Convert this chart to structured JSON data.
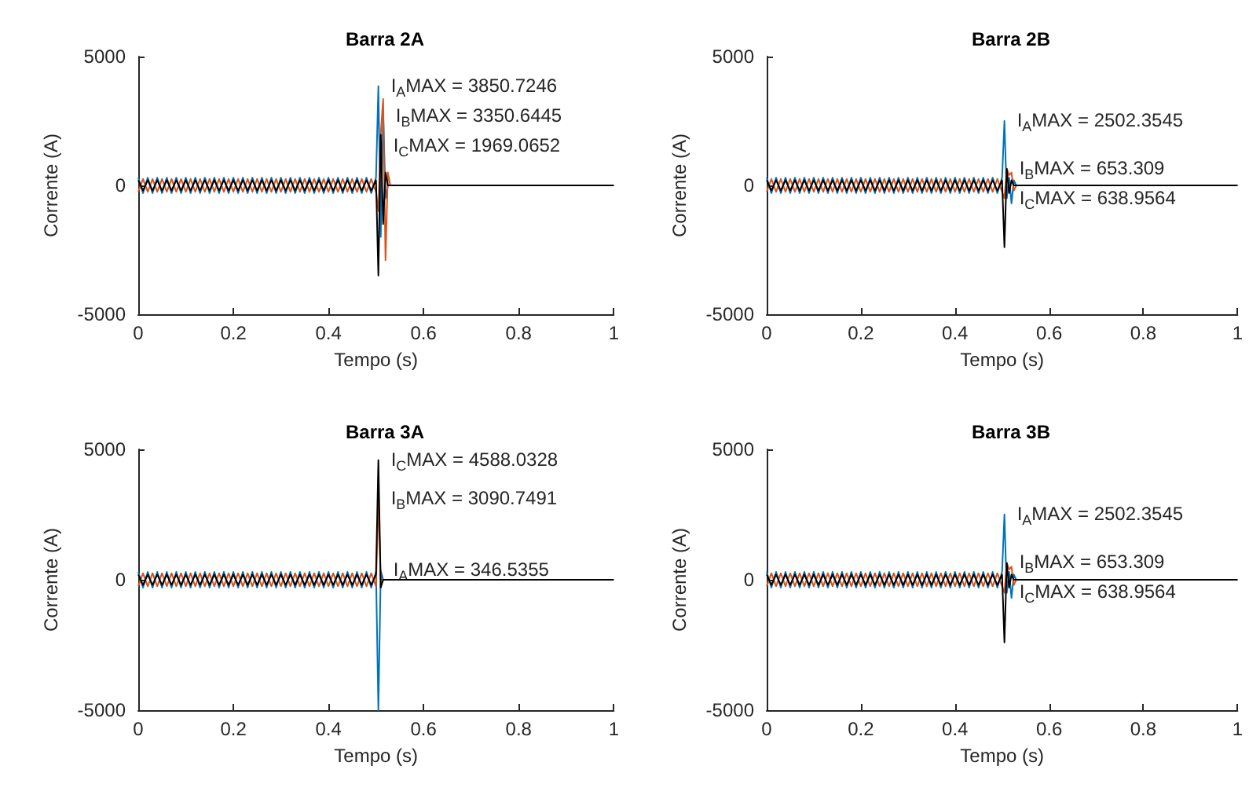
{
  "chart_data": [
    {
      "type": "line",
      "title": "Barra 2A",
      "xlabel": "Tempo (s)",
      "ylabel": "Corrente (A)",
      "xlim": [
        0,
        1
      ],
      "xticks": [
        0,
        0.2,
        0.4,
        0.6,
        0.8,
        1
      ],
      "ylim": [
        -5000,
        5000
      ],
      "yticks": [
        -5000,
        0,
        5000
      ],
      "grid": false,
      "marker": "none",
      "x": [
        0,
        0.01,
        0.02,
        0.03,
        0.04,
        0.05,
        0.06,
        0.07,
        0.08,
        0.09,
        0.1,
        0.11,
        0.12,
        0.13,
        0.14,
        0.15,
        0.16,
        0.17,
        0.18,
        0.19,
        0.2,
        0.21,
        0.22,
        0.23,
        0.24,
        0.25,
        0.26,
        0.27,
        0.28,
        0.29,
        0.3,
        0.31,
        0.32,
        0.33,
        0.34,
        0.35,
        0.36,
        0.37,
        0.38,
        0.39,
        0.4,
        0.41,
        0.42,
        0.43,
        0.44,
        0.45,
        0.46,
        0.47,
        0.48,
        0.49,
        0.5,
        0.505,
        0.51,
        0.515,
        0.52,
        0.525,
        0.53,
        1
      ],
      "series": [
        {
          "color": "#0072bd",
          "values": [
            300,
            -300,
            300,
            -300,
            300,
            -300,
            300,
            -300,
            300,
            -300,
            300,
            -300,
            300,
            -300,
            300,
            -300,
            300,
            -300,
            300,
            -300,
            300,
            -300,
            300,
            -300,
            300,
            -300,
            300,
            -300,
            300,
            -300,
            300,
            -300,
            300,
            -300,
            300,
            -300,
            300,
            -300,
            300,
            -300,
            300,
            -300,
            300,
            -300,
            300,
            -300,
            300,
            -300,
            300,
            -300,
            300,
            3850.7246,
            -2000,
            2900,
            -500,
            0,
            0,
            0
          ]
        },
        {
          "color": "#d95319",
          "values": [
            -250,
            250,
            -250,
            250,
            -250,
            250,
            -250,
            250,
            -250,
            250,
            -250,
            250,
            -250,
            250,
            -250,
            250,
            -250,
            250,
            -250,
            250,
            -250,
            250,
            -250,
            250,
            -250,
            250,
            -250,
            250,
            -250,
            250,
            -250,
            250,
            -250,
            250,
            -250,
            250,
            -250,
            250,
            -250,
            250,
            -250,
            250,
            -250,
            250,
            -250,
            250,
            -250,
            250,
            -250,
            250,
            -250,
            -1000,
            2000,
            3350.6445,
            -2900,
            500,
            0,
            0
          ]
        },
        {
          "color": "#000000",
          "values": [
            200,
            -200,
            200,
            -200,
            200,
            -200,
            200,
            -200,
            200,
            -200,
            200,
            -200,
            200,
            -200,
            200,
            -200,
            200,
            -200,
            200,
            -200,
            200,
            -200,
            200,
            -200,
            200,
            -200,
            200,
            -200,
            200,
            -200,
            200,
            -200,
            200,
            -200,
            200,
            -200,
            200,
            -200,
            200,
            -200,
            200,
            -200,
            200,
            -200,
            200,
            -200,
            200,
            -200,
            200,
            -200,
            200,
            -3500,
            1969.0652,
            -1500,
            500,
            0,
            0,
            0
          ]
        }
      ],
      "annotations": [
        {
          "text": "I$_{A}$MAX = 3850.7246",
          "x": 0.505,
          "y": 3850.7246
        },
        {
          "text": "I$_{B}$MAX = 3350.6445",
          "x": 0.515,
          "y": 3350.6445
        },
        {
          "text": "I$_{C}$MAX = 1969.0652",
          "x": 0.51,
          "y": 1969.0652
        }
      ]
    },
    {
      "type": "line",
      "title": "Barra 2B",
      "xlabel": "Tempo (s)",
      "ylabel": "Corrente (A)",
      "xlim": [
        0,
        1
      ],
      "xticks": [
        0,
        0.2,
        0.4,
        0.6,
        0.8,
        1
      ],
      "ylim": [
        -5000,
        5000
      ],
      "yticks": [
        -5000,
        0,
        5000
      ],
      "grid": false,
      "marker": "none",
      "x": [
        0,
        0.01,
        0.02,
        0.03,
        0.04,
        0.05,
        0.06,
        0.07,
        0.08,
        0.09,
        0.1,
        0.11,
        0.12,
        0.13,
        0.14,
        0.15,
        0.16,
        0.17,
        0.18,
        0.19,
        0.2,
        0.21,
        0.22,
        0.23,
        0.24,
        0.25,
        0.26,
        0.27,
        0.28,
        0.29,
        0.3,
        0.31,
        0.32,
        0.33,
        0.34,
        0.35,
        0.36,
        0.37,
        0.38,
        0.39,
        0.4,
        0.41,
        0.42,
        0.43,
        0.44,
        0.45,
        0.46,
        0.47,
        0.48,
        0.49,
        0.5,
        0.505,
        0.51,
        0.515,
        0.52,
        0.525,
        0.53,
        1
      ],
      "series": [
        {
          "color": "#0072bd",
          "values": [
            300,
            -300,
            300,
            -300,
            300,
            -300,
            300,
            -300,
            300,
            -300,
            300,
            -300,
            300,
            -300,
            300,
            -300,
            300,
            -300,
            300,
            -300,
            300,
            -300,
            300,
            -300,
            300,
            -300,
            300,
            -300,
            300,
            -300,
            300,
            -300,
            300,
            -300,
            300,
            -300,
            300,
            -300,
            300,
            -300,
            300,
            -300,
            300,
            -300,
            300,
            -300,
            300,
            -300,
            300,
            -300,
            300,
            2502.3545,
            -500,
            300,
            -700,
            200,
            0,
            0
          ]
        },
        {
          "color": "#d95319",
          "values": [
            -250,
            250,
            -250,
            250,
            -250,
            250,
            -250,
            250,
            -250,
            250,
            -250,
            250,
            -250,
            250,
            -250,
            250,
            -250,
            250,
            -250,
            250,
            -250,
            250,
            -250,
            250,
            -250,
            250,
            -250,
            250,
            -250,
            250,
            -250,
            250,
            -250,
            250,
            -250,
            250,
            -250,
            250,
            -250,
            250,
            -250,
            250,
            -250,
            250,
            -250,
            250,
            -250,
            250,
            -250,
            250,
            -250,
            -500,
            653.309,
            400,
            500,
            -200,
            0,
            0
          ]
        },
        {
          "color": "#000000",
          "values": [
            200,
            -200,
            200,
            -200,
            200,
            -200,
            200,
            -200,
            200,
            -200,
            200,
            -200,
            200,
            -200,
            200,
            -200,
            200,
            -200,
            200,
            -200,
            200,
            -200,
            200,
            -200,
            200,
            -200,
            200,
            -200,
            200,
            -200,
            200,
            -200,
            200,
            -200,
            200,
            -200,
            200,
            -200,
            200,
            -200,
            200,
            -200,
            200,
            -200,
            200,
            -200,
            200,
            -200,
            200,
            -200,
            200,
            -2400,
            638.9564,
            -300,
            200,
            0,
            0,
            0
          ]
        }
      ],
      "annotations": [
        {
          "text": "I$_{A}$MAX = 2502.3545",
          "x": 0.505,
          "y": 2502.3545
        },
        {
          "text": "I$_{B}$MAX = 653.309",
          "x": 0.51,
          "y": 653.309
        },
        {
          "text": "I$_{C}$MAX = 638.9564",
          "x": 0.51,
          "y": 638.9564
        }
      ]
    },
    {
      "type": "line",
      "title": "Barra 3A",
      "xlabel": "Tempo (s)",
      "ylabel": "Corrente (A)",
      "xlim": [
        0,
        1
      ],
      "xticks": [
        0,
        0.2,
        0.4,
        0.6,
        0.8,
        1
      ],
      "ylim": [
        -5000,
        5000
      ],
      "yticks": [
        -5000,
        0,
        5000
      ],
      "grid": false,
      "marker": "none",
      "x": [
        0,
        0.01,
        0.02,
        0.03,
        0.04,
        0.05,
        0.06,
        0.07,
        0.08,
        0.09,
        0.1,
        0.11,
        0.12,
        0.13,
        0.14,
        0.15,
        0.16,
        0.17,
        0.18,
        0.19,
        0.2,
        0.21,
        0.22,
        0.23,
        0.24,
        0.25,
        0.26,
        0.27,
        0.28,
        0.29,
        0.3,
        0.31,
        0.32,
        0.33,
        0.34,
        0.35,
        0.36,
        0.37,
        0.38,
        0.39,
        0.4,
        0.41,
        0.42,
        0.43,
        0.44,
        0.45,
        0.46,
        0.47,
        0.48,
        0.49,
        0.5,
        0.505,
        0.51,
        0.515,
        0.52,
        0.525,
        0.53,
        1
      ],
      "series": [
        {
          "color": "#0072bd",
          "values": [
            300,
            -300,
            300,
            -300,
            300,
            -300,
            300,
            -300,
            300,
            -300,
            300,
            -300,
            300,
            -300,
            300,
            -300,
            300,
            -300,
            300,
            -300,
            300,
            -300,
            300,
            -300,
            300,
            -300,
            300,
            -300,
            300,
            -300,
            300,
            -300,
            300,
            -300,
            300,
            -300,
            300,
            -300,
            300,
            -300,
            300,
            -300,
            300,
            -300,
            300,
            -300,
            300,
            -300,
            300,
            -300,
            300,
            -5000,
            346.5355,
            0,
            0,
            0,
            0,
            0
          ]
        },
        {
          "color": "#d95319",
          "values": [
            -250,
            250,
            -250,
            250,
            -250,
            250,
            -250,
            250,
            -250,
            250,
            -250,
            250,
            -250,
            250,
            -250,
            250,
            -250,
            250,
            -250,
            250,
            -250,
            250,
            -250,
            250,
            -250,
            250,
            -250,
            250,
            -250,
            250,
            -250,
            250,
            -250,
            250,
            -250,
            250,
            -250,
            250,
            -250,
            250,
            -250,
            250,
            -250,
            250,
            -250,
            250,
            -250,
            250,
            -250,
            250,
            -250,
            3090.7491,
            0,
            0,
            0,
            null,
            null,
            null
          ]
        },
        {
          "color": "#000000",
          "values": [
            200,
            -200,
            200,
            -200,
            200,
            -200,
            200,
            -200,
            200,
            -200,
            200,
            -200,
            200,
            -200,
            200,
            -200,
            200,
            -200,
            200,
            -200,
            200,
            -200,
            200,
            -200,
            200,
            -200,
            200,
            -200,
            200,
            -200,
            200,
            -200,
            200,
            -200,
            200,
            -200,
            200,
            -200,
            200,
            -200,
            200,
            -200,
            200,
            -200,
            200,
            -200,
            200,
            -200,
            200,
            -200,
            200,
            4588.0328,
            -300,
            0,
            0,
            0,
            0,
            0
          ]
        }
      ],
      "annotations": [
        {
          "text": "I$_{C}$MAX = 4588.0328",
          "x": 0.505,
          "y": 4588.0328
        },
        {
          "text": "I$_{B}$MAX = 3090.7491",
          "x": 0.505,
          "y": 3090.7491
        },
        {
          "text": "I$_{A}$MAX = 346.5355",
          "x": 0.51,
          "y": 346.5355
        }
      ]
    },
    {
      "type": "line",
      "title": "Barra 3B",
      "xlabel": "Tempo (s)",
      "ylabel": "Corrente (A)",
      "xlim": [
        0,
        1
      ],
      "xticks": [
        0,
        0.2,
        0.4,
        0.6,
        0.8,
        1
      ],
      "ylim": [
        -5000,
        5000
      ],
      "yticks": [
        -5000,
        0,
        5000
      ],
      "grid": false,
      "marker": "none",
      "x": [
        0,
        0.01,
        0.02,
        0.03,
        0.04,
        0.05,
        0.06,
        0.07,
        0.08,
        0.09,
        0.1,
        0.11,
        0.12,
        0.13,
        0.14,
        0.15,
        0.16,
        0.17,
        0.18,
        0.19,
        0.2,
        0.21,
        0.22,
        0.23,
        0.24,
        0.25,
        0.26,
        0.27,
        0.28,
        0.29,
        0.3,
        0.31,
        0.32,
        0.33,
        0.34,
        0.35,
        0.36,
        0.37,
        0.38,
        0.39,
        0.4,
        0.41,
        0.42,
        0.43,
        0.44,
        0.45,
        0.46,
        0.47,
        0.48,
        0.49,
        0.5,
        0.505,
        0.51,
        0.515,
        0.52,
        0.525,
        0.53,
        1
      ],
      "series": [
        {
          "color": "#0072bd",
          "values": [
            300,
            -300,
            300,
            -300,
            300,
            -300,
            300,
            -300,
            300,
            -300,
            300,
            -300,
            300,
            -300,
            300,
            -300,
            300,
            -300,
            300,
            -300,
            300,
            -300,
            300,
            -300,
            300,
            -300,
            300,
            -300,
            300,
            -300,
            300,
            -300,
            300,
            -300,
            300,
            -300,
            300,
            -300,
            300,
            -300,
            300,
            -300,
            300,
            -300,
            300,
            -300,
            300,
            -300,
            300,
            -300,
            300,
            2502.3545,
            -500,
            300,
            -700,
            200,
            0,
            0
          ]
        },
        {
          "color": "#d95319",
          "values": [
            -250,
            250,
            -250,
            250,
            -250,
            250,
            -250,
            250,
            -250,
            250,
            -250,
            250,
            -250,
            250,
            -250,
            250,
            -250,
            250,
            -250,
            250,
            -250,
            250,
            -250,
            250,
            -250,
            250,
            -250,
            250,
            -250,
            250,
            -250,
            250,
            -250,
            250,
            -250,
            250,
            -250,
            250,
            -250,
            250,
            -250,
            250,
            -250,
            250,
            -250,
            250,
            -250,
            250,
            -250,
            250,
            -250,
            -500,
            653.309,
            400,
            500,
            -200,
            0,
            0
          ]
        },
        {
          "color": "#000000",
          "values": [
            200,
            -200,
            200,
            -200,
            200,
            -200,
            200,
            -200,
            200,
            -200,
            200,
            -200,
            200,
            -200,
            200,
            -200,
            200,
            -200,
            200,
            -200,
            200,
            -200,
            200,
            -200,
            200,
            -200,
            200,
            -200,
            200,
            -200,
            200,
            -200,
            200,
            -200,
            200,
            -200,
            200,
            -200,
            200,
            -200,
            200,
            -200,
            200,
            -200,
            200,
            -200,
            200,
            -200,
            200,
            -200,
            200,
            -2400,
            638.9564,
            -300,
            200,
            0,
            0,
            0
          ]
        }
      ],
      "annotations": [
        {
          "text": "I$_{A}$MAX = 2502.3545",
          "x": 0.505,
          "y": 2502.3545
        },
        {
          "text": "I$_{B}$MAX = 653.309",
          "x": 0.51,
          "y": 653.309
        },
        {
          "text": "I$_{C}$MAX = 638.9564",
          "x": 0.51,
          "y": 638.9564
        }
      ]
    }
  ]
}
